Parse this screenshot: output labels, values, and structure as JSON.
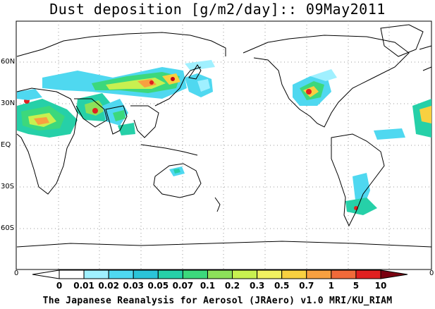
{
  "title": "Dust deposition [g/m2/day]:: 09May2011",
  "lat_labels": [
    "60N",
    "30N",
    "EQ",
    "30S",
    "60S"
  ],
  "lon_edge_labels": [
    "0",
    "0"
  ],
  "colorbar": {
    "labels": [
      "0",
      "0.01",
      "0.02",
      "0.03",
      "0.05",
      "0.07",
      "0.1",
      "0.2",
      "0.3",
      "0.5",
      "0.7",
      "1",
      "5",
      "10"
    ],
    "colors": [
      "#ffffff",
      "#a0f0ff",
      "#4fd8f0",
      "#2bc4d8",
      "#26d0a8",
      "#3cd87c",
      "#8ce05a",
      "#c8f050",
      "#f0f060",
      "#f8d040",
      "#f8a040",
      "#f06a3a",
      "#e02020",
      "#c00018",
      "#7a0010"
    ]
  },
  "credit": "The Japanese Reanalysis for Aerosol (JRAero) v1.0 MRI/KU_RIAM",
  "icons": [
    "map-frame",
    "coastline",
    "dust-plume",
    "colorbar-arrow"
  ]
}
